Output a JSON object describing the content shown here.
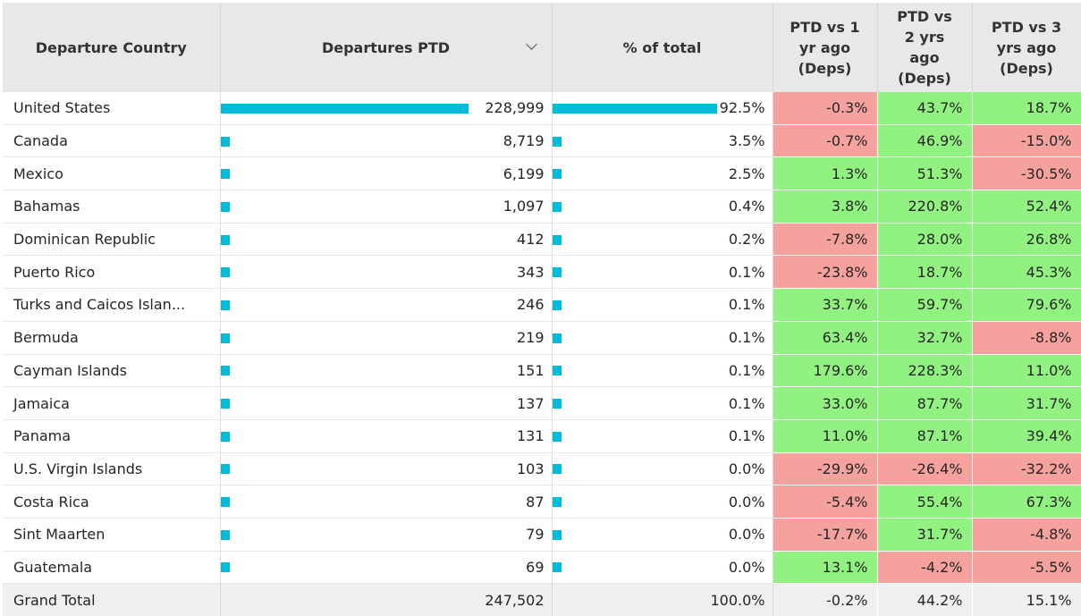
{
  "headers": {
    "country": "Departure Country",
    "departures": "Departures PTD",
    "pct": "% of total",
    "vs1_l1": "PTD vs 1",
    "vs1_l2": "yr ago",
    "vs1_l3": "(Deps)",
    "vs2_l1": "PTD vs",
    "vs2_l2": "2 yrs",
    "vs2_l3": "ago",
    "vs2_l4": "(Deps)",
    "vs3_l1": "PTD vs 3",
    "vs3_l2": "yrs ago",
    "vs3_l3": "(Deps)"
  },
  "icons": {
    "sort": "chevron-down-icon"
  },
  "colors": {
    "bar": "#00bcd9",
    "positive": "#91f281",
    "negative": "#f5a19e"
  },
  "rows": [
    {
      "country": "United States",
      "departures": "228,999",
      "dep_value": 228999,
      "pct": "92.5%",
      "pct_value": 92.5,
      "vs1": "-0.3%",
      "vs2": "43.7%",
      "vs3": "18.7%"
    },
    {
      "country": "Canada",
      "departures": "8,719",
      "dep_value": 8719,
      "pct": "3.5%",
      "pct_value": 3.5,
      "vs1": "-0.7%",
      "vs2": "46.9%",
      "vs3": "-15.0%"
    },
    {
      "country": "Mexico",
      "departures": "6,199",
      "dep_value": 6199,
      "pct": "2.5%",
      "pct_value": 2.5,
      "vs1": "1.3%",
      "vs2": "51.3%",
      "vs3": "-30.5%"
    },
    {
      "country": "Bahamas",
      "departures": "1,097",
      "dep_value": 1097,
      "pct": "0.4%",
      "pct_value": 0.4,
      "vs1": "3.8%",
      "vs2": "220.8%",
      "vs3": "52.4%"
    },
    {
      "country": "Dominican Republic",
      "departures": "412",
      "dep_value": 412,
      "pct": "0.2%",
      "pct_value": 0.2,
      "vs1": "-7.8%",
      "vs2": "28.0%",
      "vs3": "26.8%"
    },
    {
      "country": "Puerto Rico",
      "departures": "343",
      "dep_value": 343,
      "pct": "0.1%",
      "pct_value": 0.1,
      "vs1": "-23.8%",
      "vs2": "18.7%",
      "vs3": "45.3%"
    },
    {
      "country": "Turks and Caicos Islan...",
      "departures": "246",
      "dep_value": 246,
      "pct": "0.1%",
      "pct_value": 0.1,
      "vs1": "33.7%",
      "vs2": "59.7%",
      "vs3": "79.6%"
    },
    {
      "country": "Bermuda",
      "departures": "219",
      "dep_value": 219,
      "pct": "0.1%",
      "pct_value": 0.1,
      "vs1": "63.4%",
      "vs2": "32.7%",
      "vs3": "-8.8%"
    },
    {
      "country": "Cayman Islands",
      "departures": "151",
      "dep_value": 151,
      "pct": "0.1%",
      "pct_value": 0.1,
      "vs1": "179.6%",
      "vs2": "228.3%",
      "vs3": "11.0%"
    },
    {
      "country": "Jamaica",
      "departures": "137",
      "dep_value": 137,
      "pct": "0.1%",
      "pct_value": 0.1,
      "vs1": "33.0%",
      "vs2": "87.7%",
      "vs3": "31.7%"
    },
    {
      "country": "Panama",
      "departures": "131",
      "dep_value": 131,
      "pct": "0.1%",
      "pct_value": 0.1,
      "vs1": "11.0%",
      "vs2": "87.1%",
      "vs3": "39.4%"
    },
    {
      "country": "U.S. Virgin Islands",
      "departures": "103",
      "dep_value": 103,
      "pct": "0.0%",
      "pct_value": 0.0,
      "vs1": "-29.9%",
      "vs2": "-26.4%",
      "vs3": "-32.2%"
    },
    {
      "country": "Costa Rica",
      "departures": "87",
      "dep_value": 87,
      "pct": "0.0%",
      "pct_value": 0.0,
      "vs1": "-5.4%",
      "vs2": "55.4%",
      "vs3": "67.3%"
    },
    {
      "country": "Sint Maarten",
      "departures": "79",
      "dep_value": 79,
      "pct": "0.0%",
      "pct_value": 0.0,
      "vs1": "-17.7%",
      "vs2": "31.7%",
      "vs3": "-4.8%"
    },
    {
      "country": "Guatemala",
      "departures": "69",
      "dep_value": 69,
      "pct": "0.0%",
      "pct_value": 0.0,
      "vs1": "13.1%",
      "vs2": "-4.2%",
      "vs3": "-5.5%"
    }
  ],
  "total": {
    "country": "Grand Total",
    "departures": "247,502",
    "pct": "100.0%",
    "vs1": "-0.2%",
    "vs2": "44.2%",
    "vs3": "15.1%"
  }
}
